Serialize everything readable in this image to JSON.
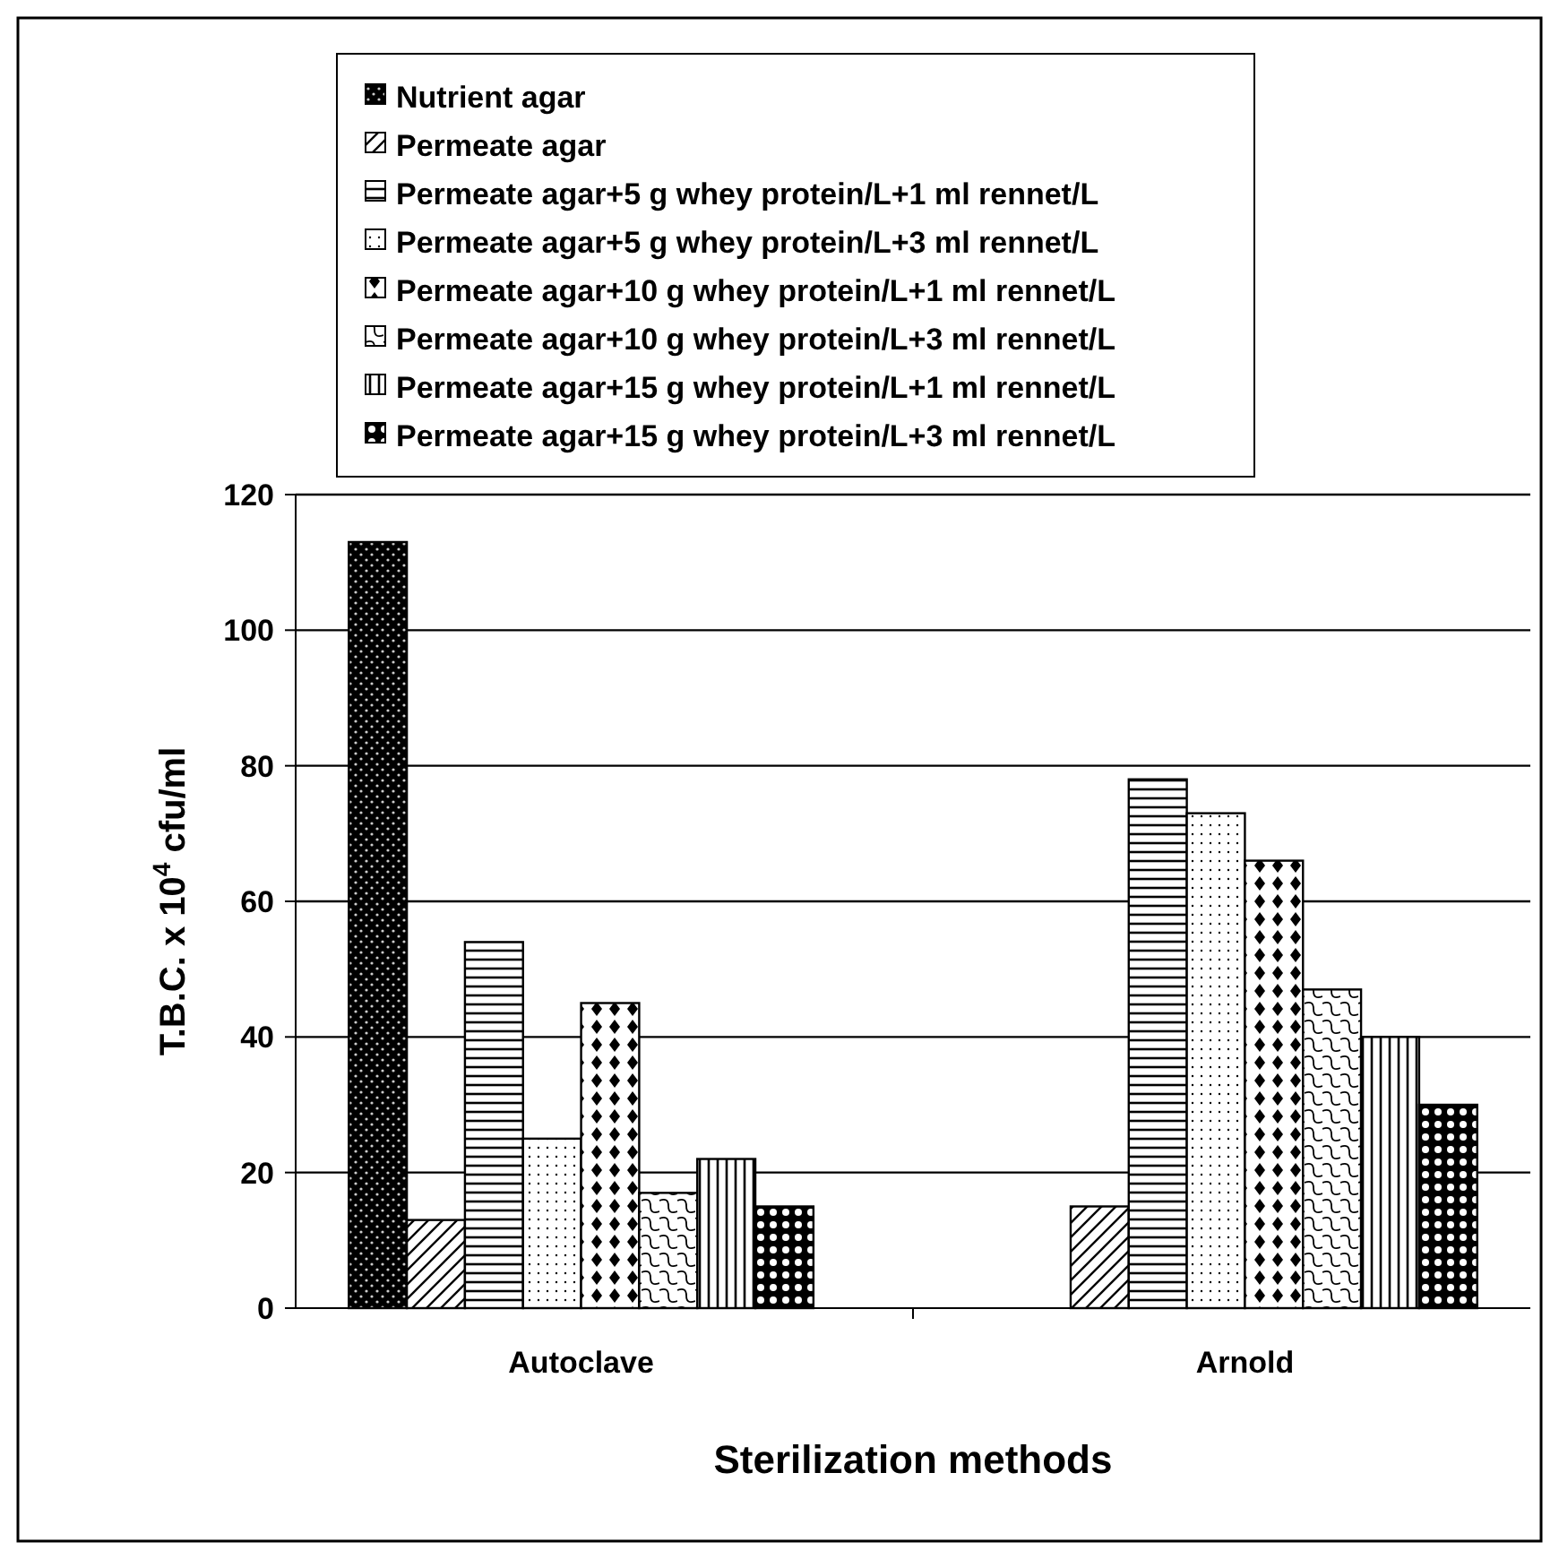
{
  "chart_data": {
    "type": "bar",
    "xlabel": "Sterilization methods",
    "ylabel": "T.B.C. x 10$^{4}$ cfu/ml",
    "categories": [
      "Autoclave",
      "Arnold"
    ],
    "series": [
      {
        "name": "Nutrient agar",
        "color": "#000000",
        "values": [
          113,
          null
        ]
      },
      {
        "name": "Permeate agar",
        "color": "#000000",
        "values": [
          13,
          15
        ]
      },
      {
        "name": "Permeate agar+5 g whey protein/L+1 ml rennet/L",
        "color": "#000000",
        "values": [
          54,
          78
        ]
      },
      {
        "name": "Permeate agar+5 g whey protein/L+3 ml rennet/L",
        "color": "#000000",
        "values": [
          25,
          73
        ]
      },
      {
        "name": "Permeate agar+10 g whey protein/L+1 ml rennet/L",
        "color": "#000000",
        "values": [
          45,
          66
        ]
      },
      {
        "name": "Permeate agar+10 g whey protein/L+3 ml rennet/L",
        "color": "#000000",
        "values": [
          17,
          47
        ]
      },
      {
        "name": "Permeate agar+15 g whey protein/L+1 ml rennet/L",
        "color": "#000000",
        "values": [
          22,
          40
        ]
      },
      {
        "name": "Permeate agar+15 g whey protein/L+3 ml rennet/L",
        "color": "#000000",
        "values": [
          15,
          30
        ]
      }
    ],
    "ylim": [
      0,
      120
    ],
    "yticks": [
      0,
      20,
      40,
      60,
      80,
      100,
      120
    ],
    "grid": "y",
    "legend": "top"
  }
}
